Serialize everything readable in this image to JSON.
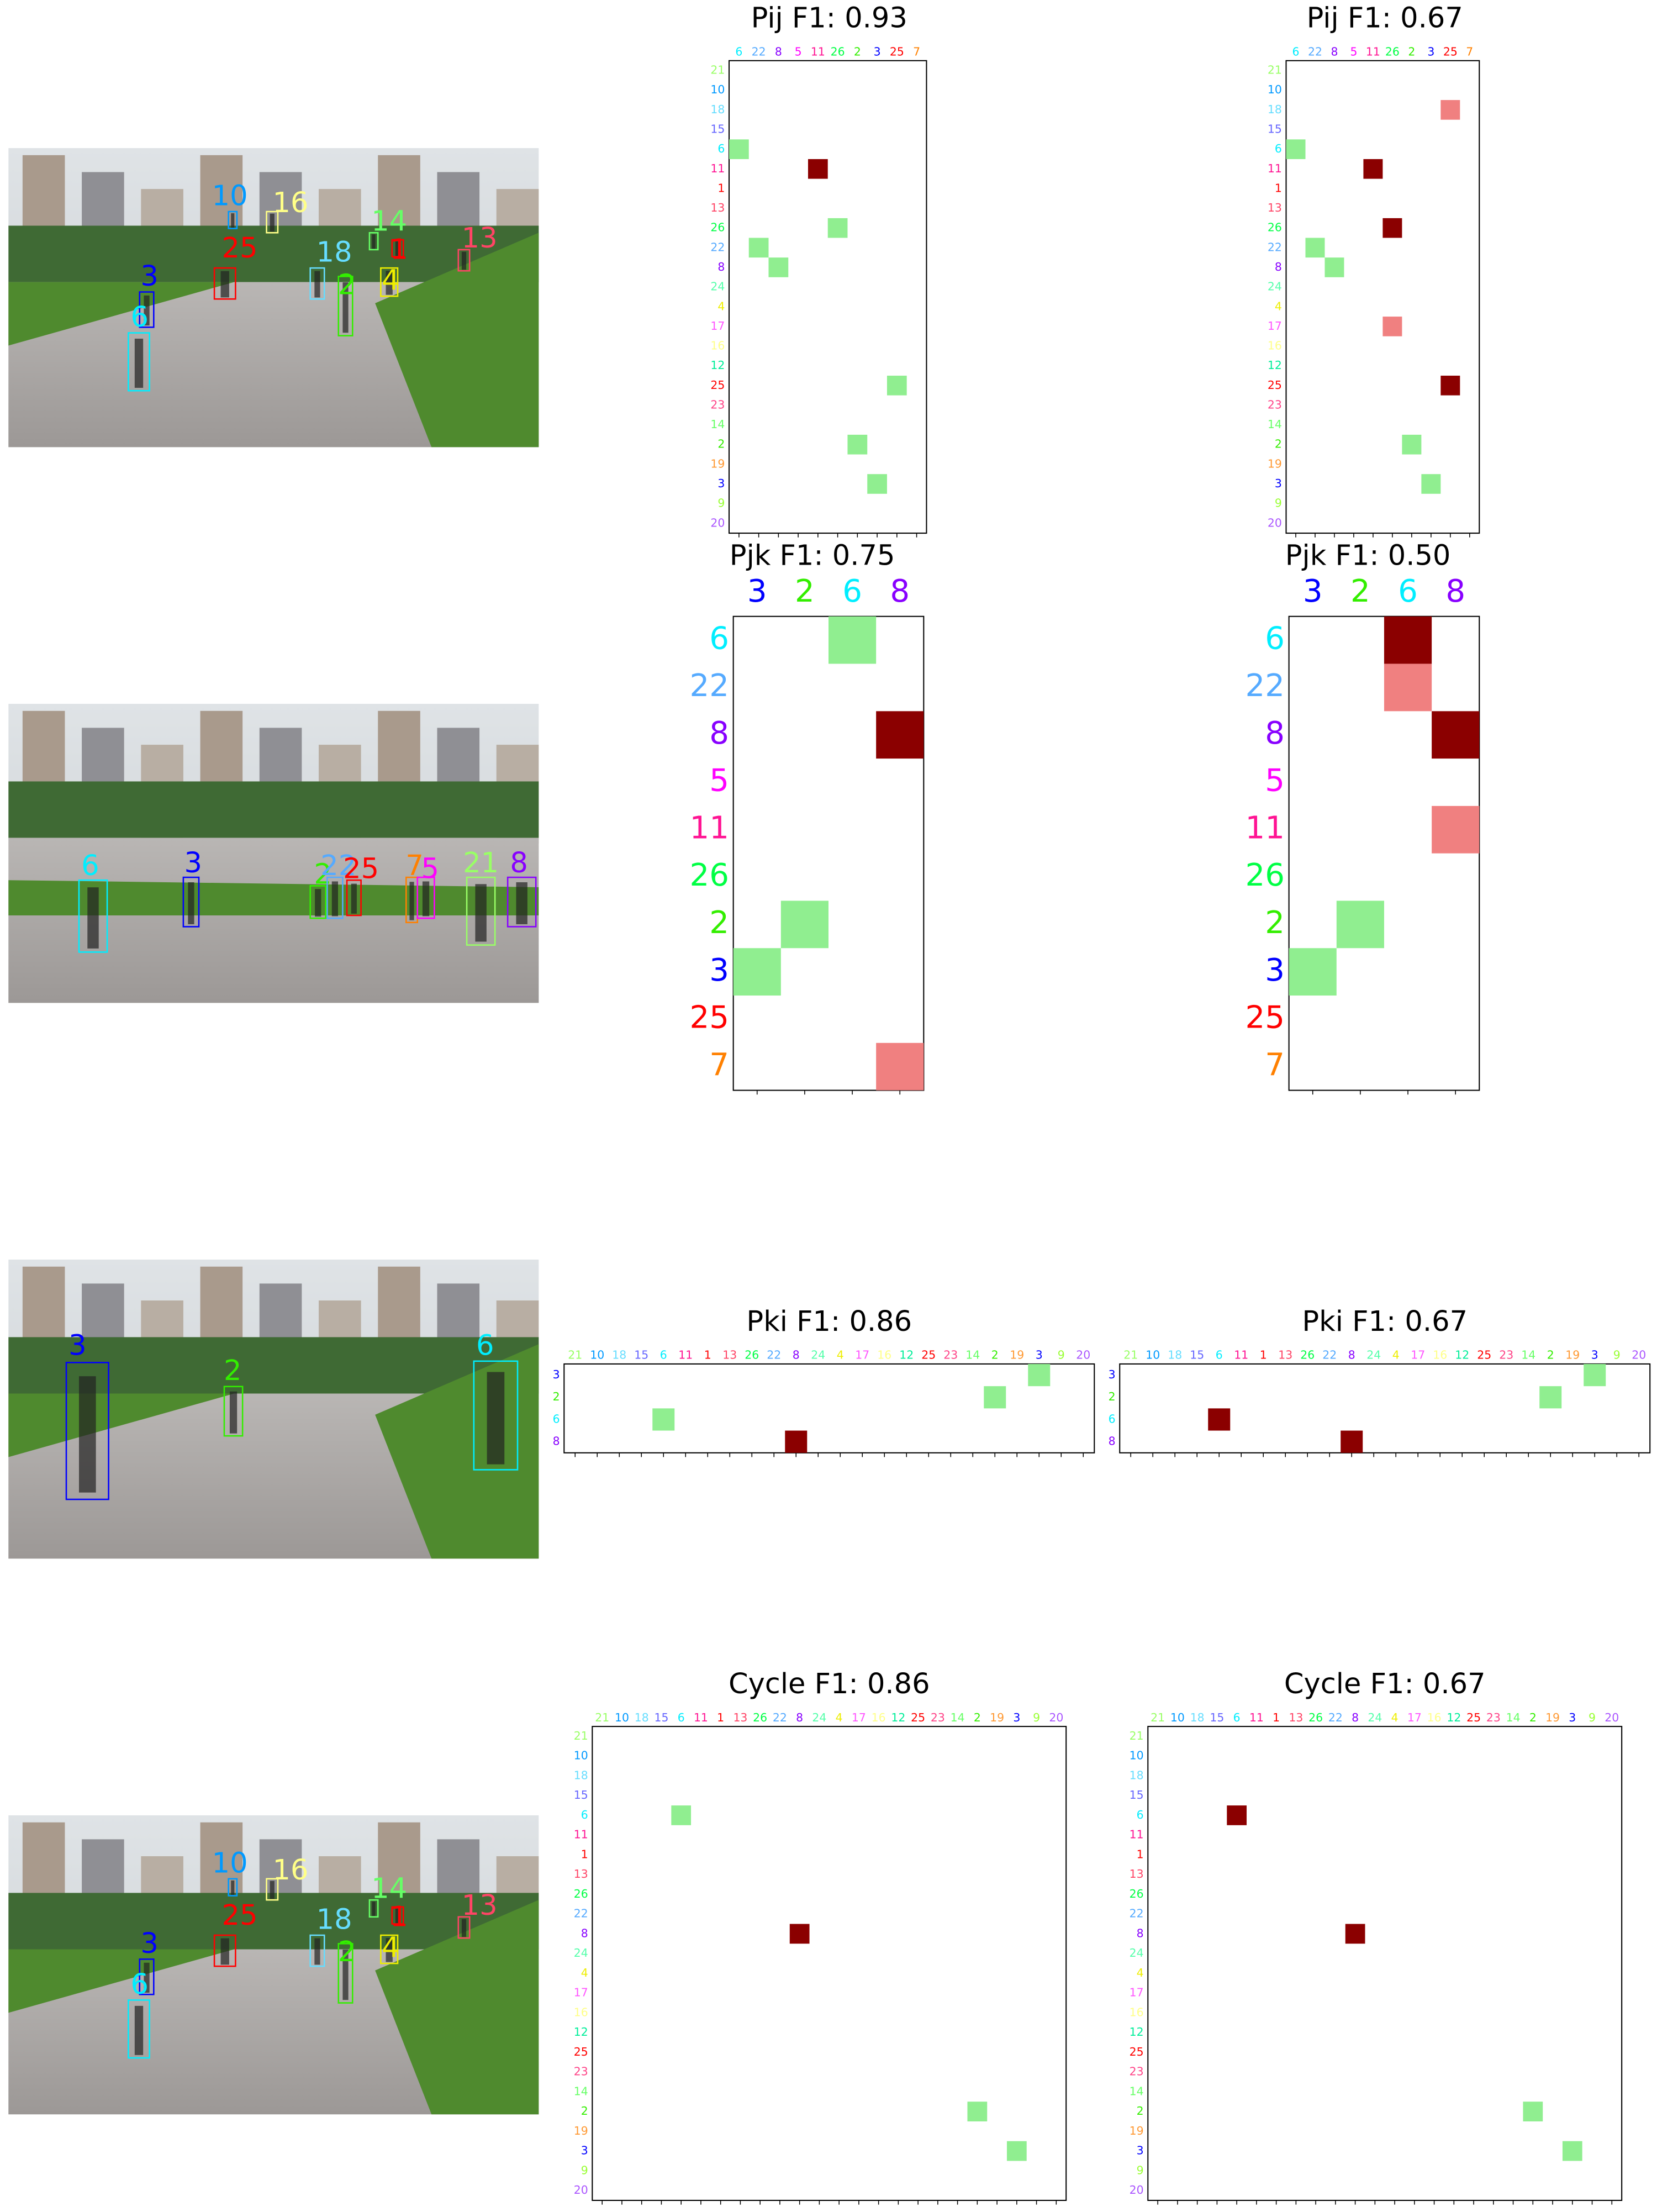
{
  "id_colors": {
    "21": "#99ff66",
    "10": "#0099ff",
    "18": "#66ddff",
    "15": "#6666ff",
    "6": "#00eeff",
    "11": "#ff1493",
    "1": "#ff0000",
    "13": "#ff4466",
    "26": "#00ff44",
    "22": "#55aaff",
    "8": "#8800ff",
    "24": "#55ffaa",
    "4": "#eeee00",
    "17": "#ff55ff",
    "16": "#ffff88",
    "12": "#00ee99",
    "25": "#ff0000",
    "23": "#ff4488",
    "14": "#66ff66",
    "2": "#33ee00",
    "19": "#ff9933",
    "3": "#0000ff",
    "9": "#99ff33",
    "20": "#aa55ff",
    "5": "#ff00ff",
    "7": "#ff8000"
  },
  "photos": [
    {
      "boxes": [
        {
          "label": "3"
        },
        {
          "label": "6"
        },
        {
          "label": "25"
        },
        {
          "label": "18"
        },
        {
          "label": "2"
        },
        {
          "label": "4"
        },
        {
          "label": "1"
        },
        {
          "label": "13"
        },
        {
          "label": "14"
        },
        {
          "label": "10"
        },
        {
          "label": "16"
        }
      ]
    },
    {
      "boxes": [
        {
          "label": "6"
        },
        {
          "label": "3"
        },
        {
          "label": "2"
        },
        {
          "label": "22"
        },
        {
          "label": "25"
        },
        {
          "label": "7"
        },
        {
          "label": "5"
        },
        {
          "label": "21"
        },
        {
          "label": "8"
        }
      ]
    },
    {
      "boxes": [
        {
          "label": "3"
        },
        {
          "label": "2"
        },
        {
          "label": "6"
        }
      ]
    },
    {
      "boxes": [
        {
          "label": "3"
        },
        {
          "label": "6"
        },
        {
          "label": "25"
        },
        {
          "label": "18"
        },
        {
          "label": "2"
        },
        {
          "label": "4"
        },
        {
          "label": "1"
        },
        {
          "label": "13"
        },
        {
          "label": "14"
        },
        {
          "label": "10"
        },
        {
          "label": "16"
        }
      ]
    }
  ],
  "chart_data": [
    {
      "type": "matrix",
      "title": "Pij F1: 0.93",
      "row_labels": [
        "21",
        "10",
        "18",
        "15",
        "6",
        "11",
        "1",
        "13",
        "26",
        "22",
        "8",
        "24",
        "4",
        "17",
        "16",
        "12",
        "25",
        "23",
        "14",
        "2",
        "19",
        "3",
        "9",
        "20"
      ],
      "col_labels": [
        "6",
        "22",
        "8",
        "5",
        "11",
        "26",
        "2",
        "3",
        "25",
        "7"
      ],
      "cells": [
        {
          "row": "6",
          "col": "6",
          "color": "#90ee90"
        },
        {
          "row": "11",
          "col": "11",
          "color": "#8b0000"
        },
        {
          "row": "26",
          "col": "26",
          "color": "#90ee90"
        },
        {
          "row": "22",
          "col": "22",
          "color": "#90ee90"
        },
        {
          "row": "8",
          "col": "8",
          "color": "#90ee90"
        },
        {
          "row": "25",
          "col": "25",
          "color": "#90ee90"
        },
        {
          "row": "2",
          "col": "2",
          "color": "#90ee90"
        },
        {
          "row": "3",
          "col": "3",
          "color": "#90ee90"
        }
      ]
    },
    {
      "type": "matrix",
      "title": "Pij F1: 0.67",
      "row_labels": [
        "21",
        "10",
        "18",
        "15",
        "6",
        "11",
        "1",
        "13",
        "26",
        "22",
        "8",
        "24",
        "4",
        "17",
        "16",
        "12",
        "25",
        "23",
        "14",
        "2",
        "19",
        "3",
        "9",
        "20"
      ],
      "col_labels": [
        "6",
        "22",
        "8",
        "5",
        "11",
        "26",
        "2",
        "3",
        "25",
        "7"
      ],
      "cells": [
        {
          "row": "18",
          "col": "25",
          "color": "#f08080"
        },
        {
          "row": "6",
          "col": "6",
          "color": "#90ee90"
        },
        {
          "row": "11",
          "col": "11",
          "color": "#8b0000"
        },
        {
          "row": "26",
          "col": "26",
          "color": "#8b0000"
        },
        {
          "row": "22",
          "col": "22",
          "color": "#90ee90"
        },
        {
          "row": "8",
          "col": "8",
          "color": "#90ee90"
        },
        {
          "row": "17",
          "col": "26",
          "color": "#f08080"
        },
        {
          "row": "25",
          "col": "25",
          "color": "#8b0000"
        },
        {
          "row": "2",
          "col": "2",
          "color": "#90ee90"
        },
        {
          "row": "3",
          "col": "3",
          "color": "#90ee90"
        }
      ]
    },
    {
      "type": "matrix",
      "title": "Pjk F1: 0.75",
      "row_labels": [
        "6",
        "22",
        "8",
        "5",
        "11",
        "26",
        "2",
        "3",
        "25",
        "7"
      ],
      "col_labels": [
        "3",
        "2",
        "6",
        "8"
      ],
      "cells": [
        {
          "row": "6",
          "col": "6",
          "color": "#90ee90"
        },
        {
          "row": "8",
          "col": "8",
          "color": "#8b0000"
        },
        {
          "row": "2",
          "col": "2",
          "color": "#90ee90"
        },
        {
          "row": "3",
          "col": "3",
          "color": "#90ee90"
        },
        {
          "row": "7",
          "col": "8",
          "color": "#f08080"
        }
      ]
    },
    {
      "type": "matrix",
      "title": "Pjk F1: 0.50",
      "row_labels": [
        "6",
        "22",
        "8",
        "5",
        "11",
        "26",
        "2",
        "3",
        "25",
        "7"
      ],
      "col_labels": [
        "3",
        "2",
        "6",
        "8"
      ],
      "cells": [
        {
          "row": "6",
          "col": "6",
          "color": "#8b0000"
        },
        {
          "row": "22",
          "col": "6",
          "color": "#f08080"
        },
        {
          "row": "8",
          "col": "8",
          "color": "#8b0000"
        },
        {
          "row": "11",
          "col": "8",
          "color": "#f08080"
        },
        {
          "row": "2",
          "col": "2",
          "color": "#90ee90"
        },
        {
          "row": "3",
          "col": "3",
          "color": "#90ee90"
        }
      ]
    },
    {
      "type": "matrix",
      "title": "Pki F1: 0.86",
      "row_labels": [
        "3",
        "2",
        "6",
        "8"
      ],
      "col_labels": [
        "21",
        "10",
        "18",
        "15",
        "6",
        "11",
        "1",
        "13",
        "26",
        "22",
        "8",
        "24",
        "4",
        "17",
        "16",
        "12",
        "25",
        "23",
        "14",
        "2",
        "19",
        "3",
        "9",
        "20"
      ],
      "cells": [
        {
          "row": "3",
          "col": "3",
          "color": "#90ee90"
        },
        {
          "row": "2",
          "col": "2",
          "color": "#90ee90"
        },
        {
          "row": "6",
          "col": "6",
          "color": "#90ee90"
        },
        {
          "row": "8",
          "col": "8",
          "color": "#8b0000"
        }
      ]
    },
    {
      "type": "matrix",
      "title": "Pki F1: 0.67",
      "row_labels": [
        "3",
        "2",
        "6",
        "8"
      ],
      "col_labels": [
        "21",
        "10",
        "18",
        "15",
        "6",
        "11",
        "1",
        "13",
        "26",
        "22",
        "8",
        "24",
        "4",
        "17",
        "16",
        "12",
        "25",
        "23",
        "14",
        "2",
        "19",
        "3",
        "9",
        "20"
      ],
      "cells": [
        {
          "row": "3",
          "col": "3",
          "color": "#90ee90"
        },
        {
          "row": "2",
          "col": "2",
          "color": "#90ee90"
        },
        {
          "row": "6",
          "col": "6",
          "color": "#8b0000"
        },
        {
          "row": "8",
          "col": "8",
          "color": "#8b0000"
        }
      ]
    },
    {
      "type": "matrix",
      "title": "Cycle F1: 0.86",
      "row_labels": [
        "21",
        "10",
        "18",
        "15",
        "6",
        "11",
        "1",
        "13",
        "26",
        "22",
        "8",
        "24",
        "4",
        "17",
        "16",
        "12",
        "25",
        "23",
        "14",
        "2",
        "19",
        "3",
        "9",
        "20"
      ],
      "col_labels": [
        "21",
        "10",
        "18",
        "15",
        "6",
        "11",
        "1",
        "13",
        "26",
        "22",
        "8",
        "24",
        "4",
        "17",
        "16",
        "12",
        "25",
        "23",
        "14",
        "2",
        "19",
        "3",
        "9",
        "20"
      ],
      "cells": [
        {
          "row": "6",
          "col": "6",
          "color": "#90ee90"
        },
        {
          "row": "8",
          "col": "8",
          "color": "#8b0000"
        },
        {
          "row": "2",
          "col": "2",
          "color": "#90ee90"
        },
        {
          "row": "3",
          "col": "3",
          "color": "#90ee90"
        }
      ]
    },
    {
      "type": "matrix",
      "title": "Cycle F1: 0.67",
      "row_labels": [
        "21",
        "10",
        "18",
        "15",
        "6",
        "11",
        "1",
        "13",
        "26",
        "22",
        "8",
        "24",
        "4",
        "17",
        "16",
        "12",
        "25",
        "23",
        "14",
        "2",
        "19",
        "3",
        "9",
        "20"
      ],
      "col_labels": [
        "21",
        "10",
        "18",
        "15",
        "6",
        "11",
        "1",
        "13",
        "26",
        "22",
        "8",
        "24",
        "4",
        "17",
        "16",
        "12",
        "25",
        "23",
        "14",
        "2",
        "19",
        "3",
        "9",
        "20"
      ],
      "cells": [
        {
          "row": "6",
          "col": "6",
          "color": "#8b0000"
        },
        {
          "row": "8",
          "col": "8",
          "color": "#8b0000"
        },
        {
          "row": "2",
          "col": "2",
          "color": "#90ee90"
        },
        {
          "row": "3",
          "col": "3",
          "color": "#90ee90"
        }
      ]
    }
  ]
}
